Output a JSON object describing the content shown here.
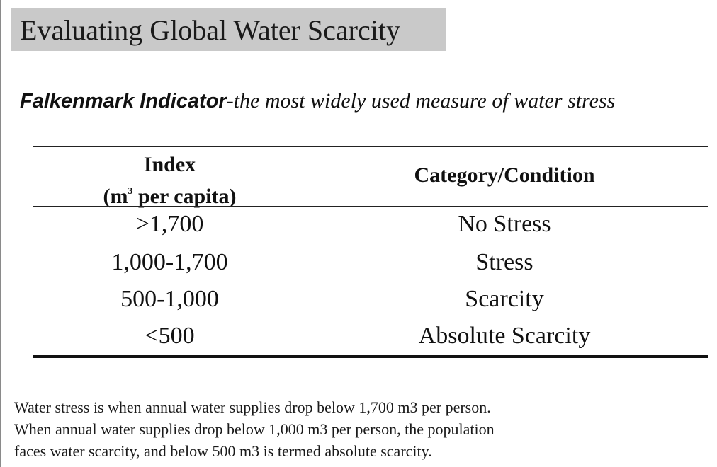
{
  "title": "Evaluating Global Water Scarcity",
  "subtitle": {
    "term": "Falkenmark Indicator",
    "description": "-the most widely used measure of water stress"
  },
  "table": {
    "header_index_line1": "Index",
    "header_index_unit_open": "(m",
    "header_index_unit_sup": "3",
    "header_index_unit_close": " per capita)",
    "header_category": "Category/Condition",
    "rows": [
      {
        "index": ">1,700",
        "category": "No Stress"
      },
      {
        "index": "1,000-1,700",
        "category": "Stress"
      },
      {
        "index": "500-1,000",
        "category": "Scarcity"
      },
      {
        "index": "<500",
        "category": "Absolute Scarcity"
      }
    ]
  },
  "note": {
    "lines": [
      "Water stress is when annual water supplies drop below 1,700 m3 per person.",
      "When annual water supplies drop below 1,000 m3 per person, the population",
      "faces water scarcity, and below 500 m3 is termed absolute scarcity."
    ]
  }
}
